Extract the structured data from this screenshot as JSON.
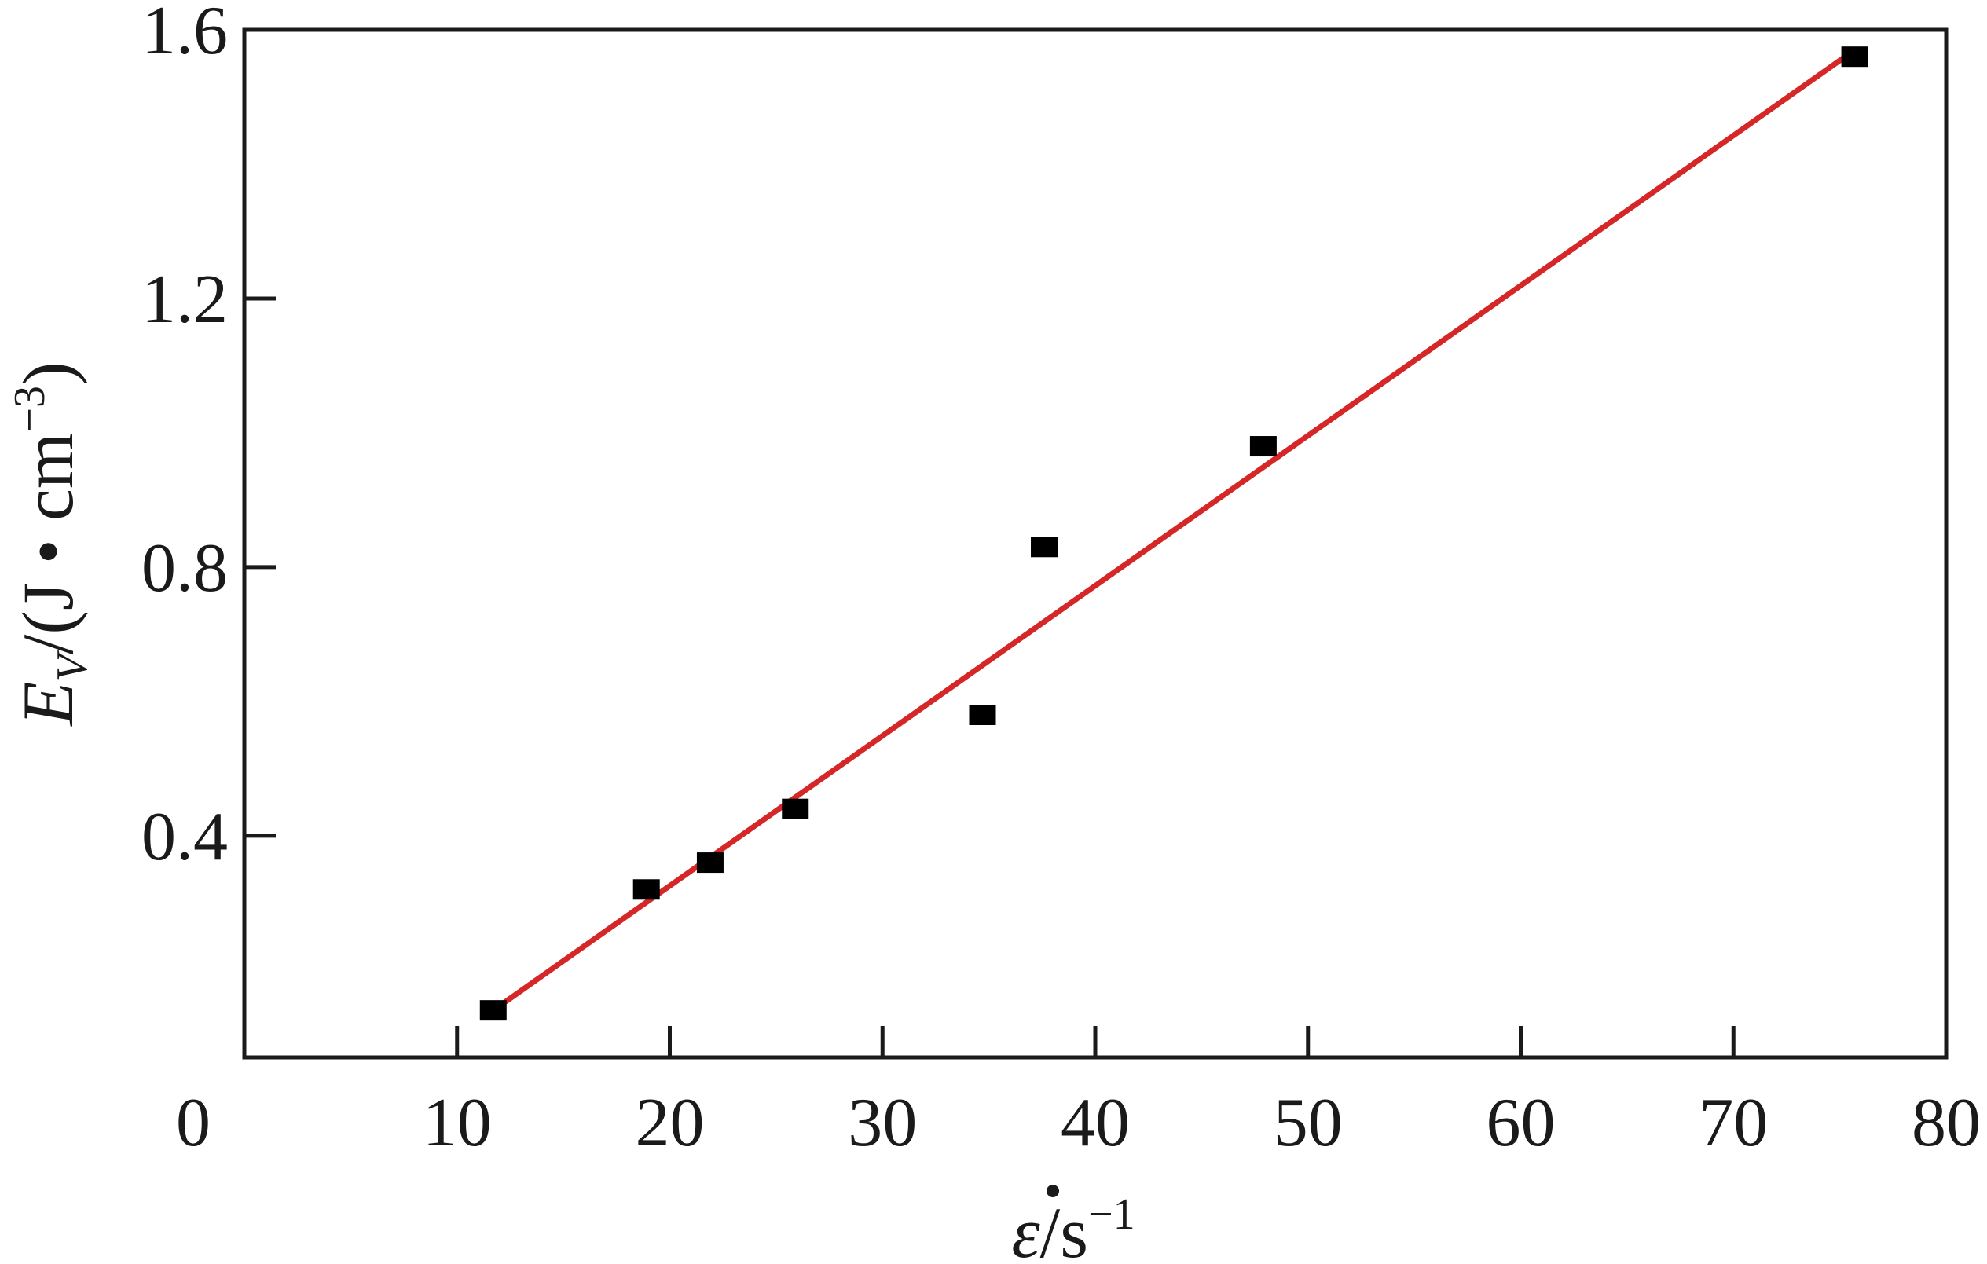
{
  "chart_data": {
    "type": "scatter",
    "xlabel": {
      "symbol": "ε",
      "unit": "/s",
      "exponent": "−1"
    },
    "ylabel": {
      "symbol": "E",
      "subscript": "V",
      "unit": "/(J • cm",
      "exponent": "−3",
      "close": ")"
    },
    "xlim": [
      0,
      80
    ],
    "ylim": [
      0.07,
      1.6
    ],
    "x_ticks": [
      0,
      10,
      20,
      30,
      40,
      50,
      60,
      70,
      80
    ],
    "y_ticks": [
      0.4,
      0.8,
      1.2,
      1.6
    ],
    "x_tick_labels": [
      "0",
      "10",
      "20",
      "30",
      "40",
      "50",
      "60",
      "70",
      "80"
    ],
    "y_tick_labels": [
      "0.4",
      "0.8",
      "1.2",
      "1.6"
    ],
    "grid": false,
    "series": [
      {
        "kind": "points",
        "marker": "square",
        "color": "#000000",
        "x": [
          11.7,
          18.9,
          21.9,
          25.9,
          34.7,
          37.6,
          47.9,
          75.7
        ],
        "y": [
          0.14,
          0.32,
          0.36,
          0.44,
          0.58,
          0.83,
          0.98,
          1.56
        ]
      },
      {
        "kind": "fit-line",
        "color": "#d62728",
        "x": [
          11.7,
          75.7
        ],
        "y": [
          0.14,
          1.57
        ]
      }
    ]
  }
}
